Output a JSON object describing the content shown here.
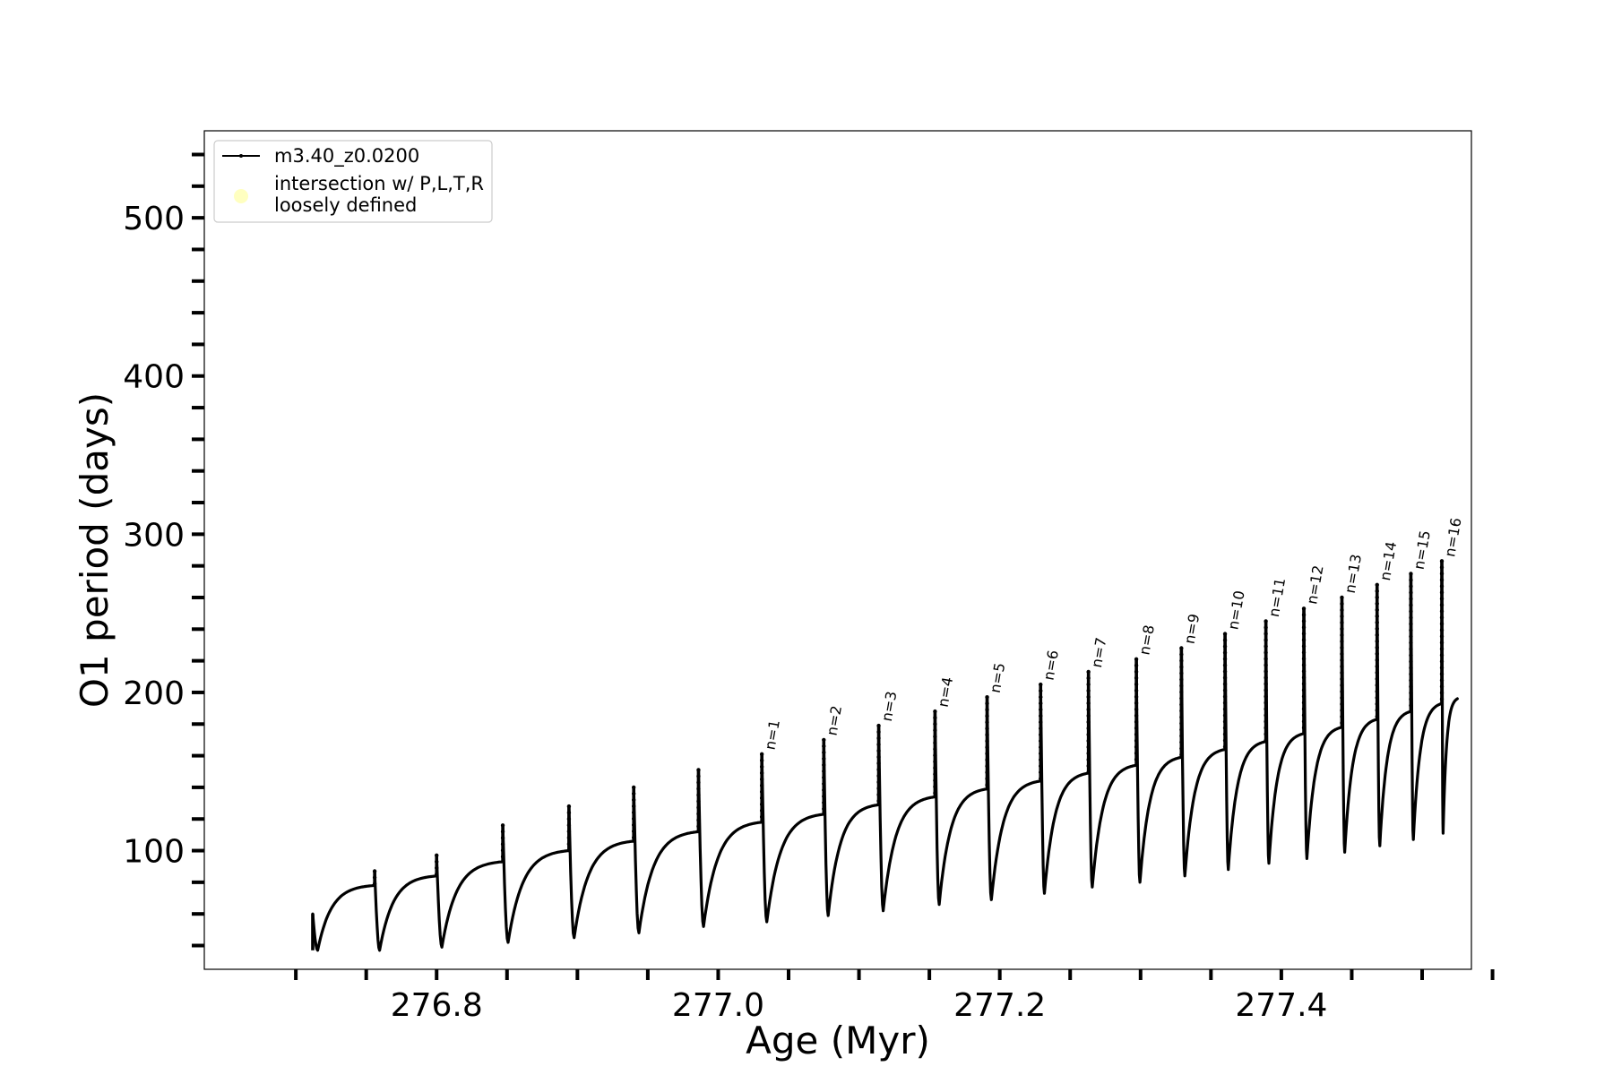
{
  "chart_data": {
    "type": "line",
    "xlabel": "Age (Myr)",
    "ylabel": "O1 period (days)",
    "xlim": [
      276.635,
      277.535
    ],
    "ylim": [
      25,
      555
    ],
    "x_ticks": [
      276.8,
      277.0,
      277.2,
      277.4
    ],
    "x_tick_labels": [
      "276.8",
      "277.0",
      "277.2",
      "277.4"
    ],
    "x_minor_ticks": [
      276.7,
      276.75,
      276.85,
      276.9,
      276.95,
      277.05,
      277.1,
      277.15,
      277.25,
      277.3,
      277.35,
      277.45,
      277.5,
      277.55
    ],
    "y_ticks": [
      100,
      200,
      300,
      400,
      500
    ],
    "y_tick_labels": [
      "100",
      "200",
      "300",
      "400",
      "500"
    ],
    "y_minor_ticks": [
      40,
      60,
      80,
      120,
      140,
      160,
      180,
      220,
      240,
      260,
      280,
      320,
      340,
      360,
      380,
      420,
      440,
      460,
      480,
      520,
      540
    ],
    "legend_position": "upper-left",
    "series": [
      {
        "name": "m3.40_z0.0200",
        "color": "#000000",
        "marker": "small-dot"
      }
    ],
    "legend_entries": [
      {
        "label": "m3.40_z0.0200",
        "kind": "line",
        "color": "#000000"
      },
      {
        "label_lines": [
          "intersection w/ P,L,T,R",
          "loosely defined"
        ],
        "kind": "scatter",
        "color": "#ffffc0"
      }
    ],
    "start": {
      "x": 276.712,
      "y": 60
    },
    "end": {
      "x": 277.525,
      "y": 196
    },
    "pulses": [
      {
        "x": 276.756,
        "pre": 78,
        "peak": 87,
        "min": 37
      },
      {
        "x": 276.8,
        "pre": 84,
        "peak": 97,
        "min": 39
      },
      {
        "x": 276.847,
        "pre": 93,
        "peak": 116,
        "min": 42
      },
      {
        "x": 276.894,
        "pre": 100,
        "peak": 128,
        "min": 45
      },
      {
        "x": 276.94,
        "pre": 106,
        "peak": 140,
        "min": 48
      },
      {
        "x": 276.986,
        "pre": 112,
        "peak": 151,
        "min": 52
      },
      {
        "x": 277.031,
        "pre": 118,
        "peak": 161,
        "min": 55,
        "label": "n=1"
      },
      {
        "x": 277.075,
        "pre": 123,
        "peak": 170,
        "min": 59,
        "label": "n=2"
      },
      {
        "x": 277.114,
        "pre": 129,
        "peak": 179,
        "min": 62,
        "label": "n=3"
      },
      {
        "x": 277.154,
        "pre": 134,
        "peak": 188,
        "min": 66,
        "label": "n=4"
      },
      {
        "x": 277.191,
        "pre": 139,
        "peak": 197,
        "min": 69,
        "label": "n=5"
      },
      {
        "x": 277.229,
        "pre": 144,
        "peak": 205,
        "min": 73,
        "label": "n=6"
      },
      {
        "x": 277.263,
        "pre": 149,
        "peak": 213,
        "min": 77,
        "label": "n=7"
      },
      {
        "x": 277.297,
        "pre": 154,
        "peak": 221,
        "min": 80,
        "label": "n=8"
      },
      {
        "x": 277.329,
        "pre": 159,
        "peak": 228,
        "min": 84,
        "label": "n=9"
      },
      {
        "x": 277.36,
        "pre": 164,
        "peak": 237,
        "min": 88,
        "label": "n=10"
      },
      {
        "x": 277.389,
        "pre": 169,
        "peak": 245,
        "min": 92,
        "label": "n=11"
      },
      {
        "x": 277.416,
        "pre": 174,
        "peak": 253,
        "min": 95,
        "label": "n=12"
      },
      {
        "x": 277.443,
        "pre": 178,
        "peak": 260,
        "min": 99,
        "label": "n=13"
      },
      {
        "x": 277.468,
        "pre": 183,
        "peak": 268,
        "min": 103,
        "label": "n=14"
      },
      {
        "x": 277.492,
        "pre": 188,
        "peak": 275,
        "min": 107,
        "label": "n=15"
      },
      {
        "x": 277.514,
        "pre": 193,
        "peak": 283,
        "min": 111,
        "label": "n=16"
      }
    ]
  }
}
